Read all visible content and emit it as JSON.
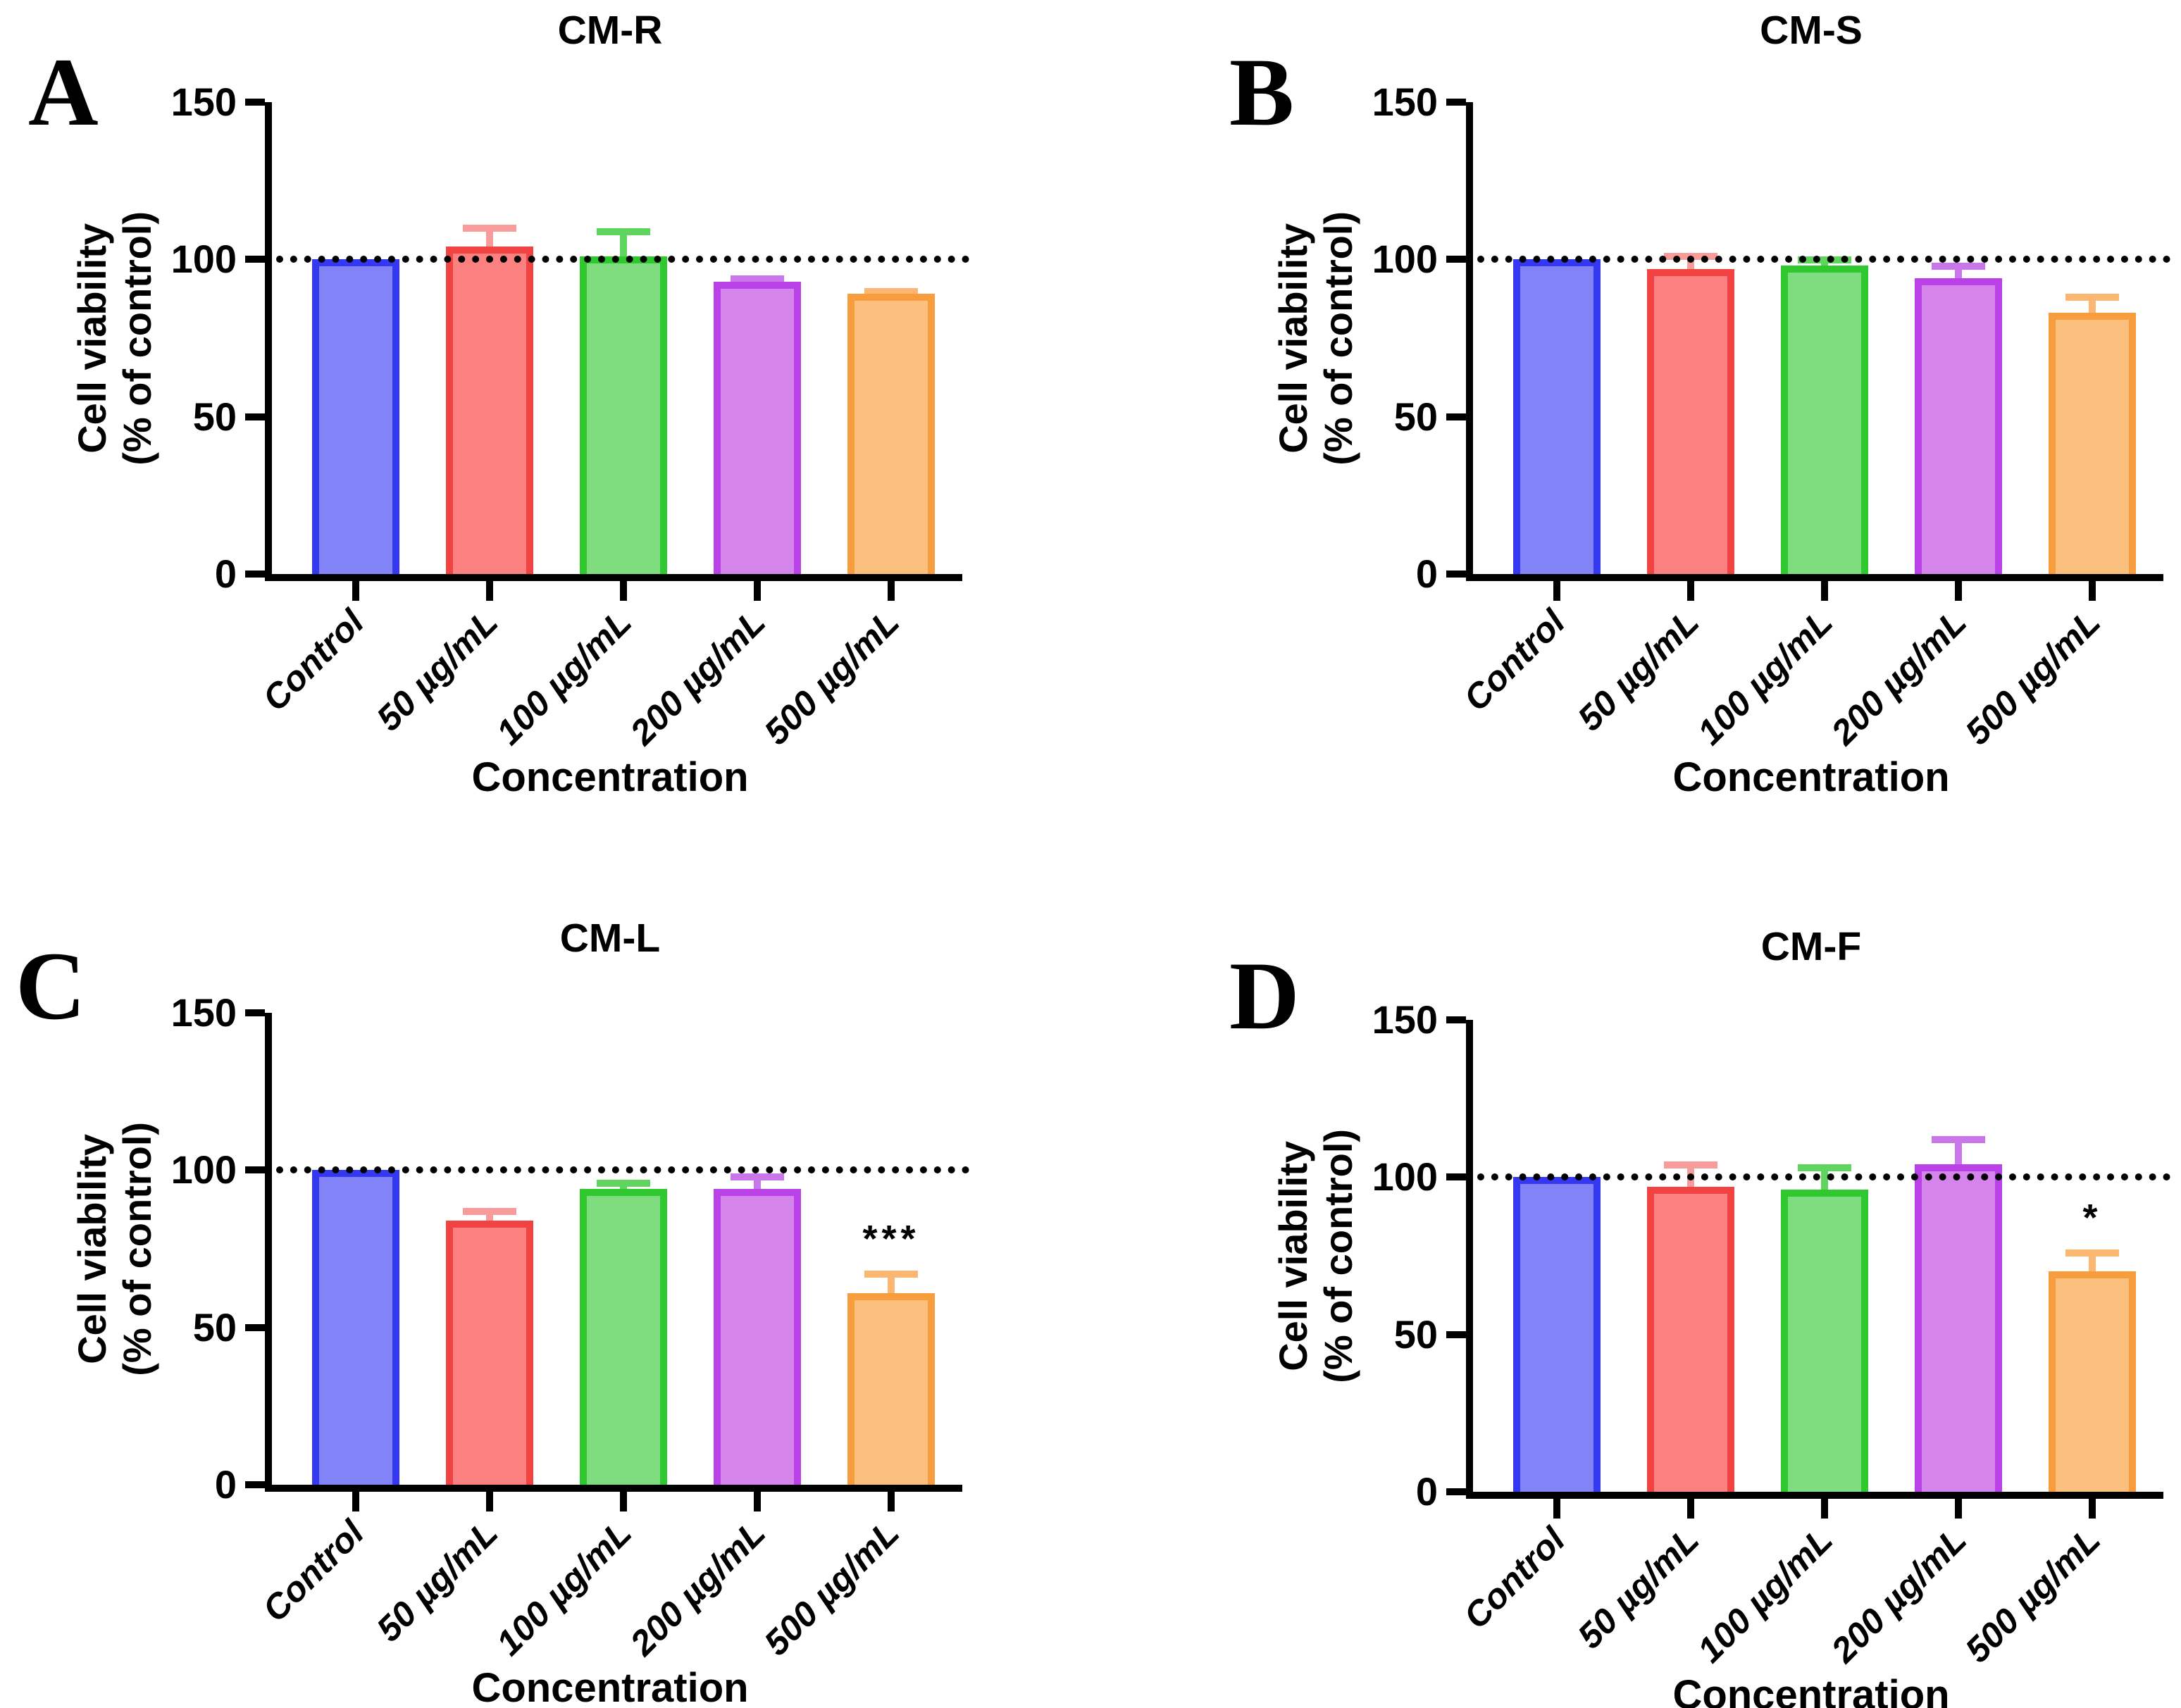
{
  "style": {
    "background": "#FFFFFF",
    "axis_color": "#000000",
    "text_color": "#000000",
    "reference_line_style": "dotted",
    "series": [
      {
        "label": "Control",
        "fill": "#8183F6",
        "border": "#3438F0",
        "error": "#9193F7"
      },
      {
        "label": "50 µg/mL",
        "fill": "#FB8181",
        "border": "#F24343",
        "error": "#F89B9B"
      },
      {
        "label": "100 µg/mL",
        "fill": "#7FDC7F",
        "border": "#2FC92F",
        "error": "#5FD45F"
      },
      {
        "label": "200 µg/mL",
        "fill": "#D584EB",
        "border": "#BA41E8",
        "error": "#C876E9"
      },
      {
        "label": "500 µg/mL",
        "fill": "#FCC07E",
        "border": "#F89D3E",
        "error": "#FBB672"
      }
    ]
  },
  "chart_data": [
    {
      "type": "bar",
      "panel_letter": "A",
      "title": "CM-R",
      "categories": [
        "Control",
        "50 µg/mL",
        "100 µg/mL",
        "200 µg/mL",
        "500 µg/mL"
      ],
      "values": [
        100,
        104,
        101,
        93,
        89
      ],
      "errors_upper": [
        0,
        7,
        9,
        2,
        2
      ],
      "significance": [
        "",
        "",
        "",
        "",
        ""
      ],
      "ylabel_lines": [
        "Cell viability",
        "(% of control)"
      ],
      "xlabel": "Concentration",
      "ylim": [
        0,
        150
      ],
      "yticks": [
        0,
        50,
        100,
        150
      ],
      "reference_line": 100,
      "grid": false,
      "legend": "none"
    },
    {
      "type": "bar",
      "panel_letter": "B",
      "title": "CM-S",
      "categories": [
        "Control",
        "50 µg/mL",
        "100 µg/mL",
        "200 µg/mL",
        "500 µg/mL"
      ],
      "values": [
        100,
        97,
        98,
        94,
        83
      ],
      "errors_upper": [
        0,
        5,
        3,
        5,
        6
      ],
      "significance": [
        "",
        "",
        "",
        "",
        ""
      ],
      "ylabel_lines": [
        "Cell viability",
        "(% of control)"
      ],
      "xlabel": "Concentration",
      "ylim": [
        0,
        150
      ],
      "yticks": [
        0,
        50,
        100,
        150
      ],
      "reference_line": 100,
      "grid": false,
      "legend": "none"
    },
    {
      "type": "bar",
      "panel_letter": "C",
      "title": "CM-L",
      "categories": [
        "Control",
        "50 µg/mL",
        "100 µg/mL",
        "200 µg/mL",
        "500 µg/mL"
      ],
      "values": [
        100,
        84,
        94,
        94,
        61
      ],
      "errors_upper": [
        0,
        4,
        3,
        5,
        7
      ],
      "significance": [
        "",
        "",
        "",
        "",
        "***"
      ],
      "ylabel_lines": [
        "Cell viability",
        "(% of control)"
      ],
      "xlabel": "Concentration",
      "ylim": [
        0,
        150
      ],
      "yticks": [
        0,
        50,
        100,
        150
      ],
      "reference_line": 100,
      "grid": false,
      "legend": "none"
    },
    {
      "type": "bar",
      "panel_letter": "D",
      "title": "CM-F",
      "categories": [
        "Control",
        "50 µg/mL",
        "100 µg/mL",
        "200 µg/mL",
        "500 µg/mL"
      ],
      "values": [
        100,
        97,
        96,
        104,
        70
      ],
      "errors_upper": [
        0,
        8,
        8,
        9,
        7
      ],
      "significance": [
        "",
        "",
        "",
        "",
        "*"
      ],
      "ylabel_lines": [
        "Cell viability",
        "(% of control)"
      ],
      "xlabel": "Concentration",
      "ylim": [
        0,
        150
      ],
      "yticks": [
        0,
        50,
        100,
        150
      ],
      "reference_line": 100,
      "grid": false,
      "legend": "none"
    }
  ]
}
